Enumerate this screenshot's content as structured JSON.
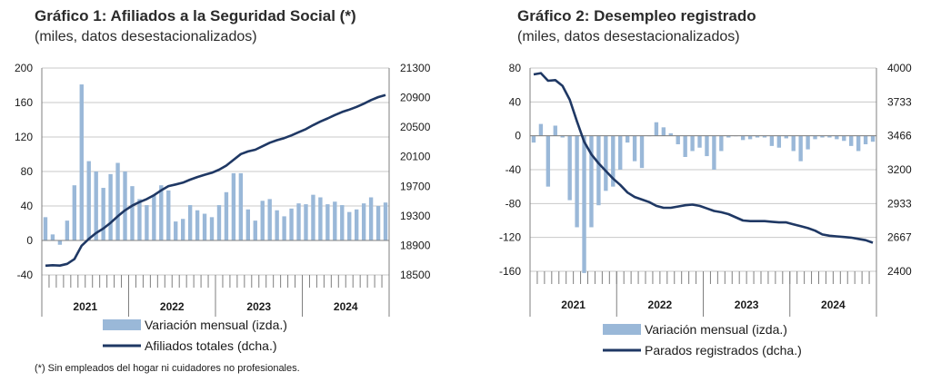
{
  "chart_data": [
    {
      "type": "bar+line",
      "title": "Gráfico 1: Afiliados a la Seguridad Social (*)",
      "subtitle": "(miles, datos desestacionalizados)",
      "left_axis": {
        "ticks": [
          "200",
          "160",
          "120",
          "80",
          "40",
          "0",
          "-40"
        ],
        "ylim": [
          -40,
          200
        ]
      },
      "right_axis": {
        "ticks": [
          "21300",
          "20900",
          "20500",
          "20100",
          "19700",
          "19300",
          "18900",
          "18500"
        ],
        "ylim": [
          18500,
          21300
        ]
      },
      "x_labels": [
        "2021",
        "2022",
        "2023",
        "2024"
      ],
      "grid": true,
      "legend": {
        "bar_label": "Variación mensual (izda.)",
        "line_label": "Afiliados totales (dcha.)"
      },
      "bar_color": "#9ab8d8",
      "line_color": "#1f3864",
      "series": [
        {
          "name": "Variación mensual (izda.)",
          "axis": "left",
          "kind": "bar",
          "values": [
            27,
            7,
            -5,
            23,
            64,
            181,
            92,
            80,
            61,
            77,
            90,
            80,
            63,
            48,
            41,
            53,
            64,
            58,
            22,
            25,
            41,
            35,
            31,
            27,
            41,
            56,
            78,
            78,
            36,
            23,
            46,
            48,
            35,
            28,
            37,
            43,
            42,
            53,
            50,
            42,
            45,
            41,
            33,
            36,
            43,
            50,
            40,
            44
          ]
        },
        {
          "name": "Afiliados totales (dcha.)",
          "axis": "right",
          "kind": "line",
          "values": [
            18625,
            18632,
            18627,
            18650,
            18714,
            18895,
            18987,
            19067,
            19128,
            19205,
            19295,
            19375,
            19438,
            19486,
            19527,
            19580,
            19644,
            19702,
            19724,
            19749,
            19790,
            19825,
            19856,
            19883,
            19924,
            19980,
            20058,
            20136,
            20172,
            20195,
            20241,
            20289,
            20324,
            20352,
            20389,
            20432,
            20474,
            20527,
            20577,
            20619,
            20664,
            20705,
            20738,
            20774,
            20817,
            20867,
            20907,
            20935
          ]
        }
      ]
    },
    {
      "type": "bar+line",
      "title": "Gráfico 2: Desempleo registrado",
      "subtitle": "(miles, datos desestacionalizados)",
      "left_axis": {
        "ticks": [
          "80",
          "40",
          "0",
          "-40",
          "-80",
          "-120",
          "-160"
        ],
        "ylim": [
          -160,
          80
        ]
      },
      "right_axis": {
        "ticks": [
          "4000",
          "3733",
          "3466",
          "3200",
          "2933",
          "2667",
          "2400"
        ],
        "ylim": [
          2400,
          4000
        ]
      },
      "x_labels": [
        "2021",
        "2022",
        "2023",
        "2024"
      ],
      "grid": true,
      "legend": {
        "bar_label": "Variación mensual (izda.)",
        "line_label": "Parados registrados (dcha.)"
      },
      "bar_color": "#9ab8d8",
      "line_color": "#1f3864",
      "series": [
        {
          "name": "Variación mensual (izda.)",
          "axis": "left",
          "kind": "bar",
          "values": [
            -8,
            14,
            -60,
            12,
            -2,
            -76,
            -108,
            -162,
            -108,
            -82,
            -65,
            -60,
            -40,
            -8,
            -30,
            -38,
            0,
            16,
            10,
            3,
            -10,
            -25,
            -18,
            -14,
            -24,
            -40,
            -18,
            -2,
            0,
            -5,
            -4,
            -2,
            -2,
            -12,
            -14,
            -3,
            -18,
            -30,
            -16,
            -4,
            -2,
            -2,
            -4,
            -6,
            -12,
            -18,
            -10,
            -7
          ]
        },
        {
          "name": "Parados registrados (dcha.)",
          "axis": "right",
          "kind": "line",
          "values": [
            3950,
            3960,
            3900,
            3905,
            3860,
            3750,
            3580,
            3420,
            3320,
            3250,
            3190,
            3130,
            3080,
            3020,
            2985,
            2965,
            2945,
            2915,
            2900,
            2900,
            2910,
            2920,
            2925,
            2915,
            2895,
            2875,
            2865,
            2850,
            2825,
            2800,
            2795,
            2795,
            2795,
            2790,
            2785,
            2785,
            2770,
            2755,
            2740,
            2720,
            2690,
            2680,
            2675,
            2670,
            2665,
            2655,
            2645,
            2625
          ]
        }
      ]
    }
  ],
  "footnote": "(*) Sin empleados del hogar ni cuidadores no profesionales."
}
